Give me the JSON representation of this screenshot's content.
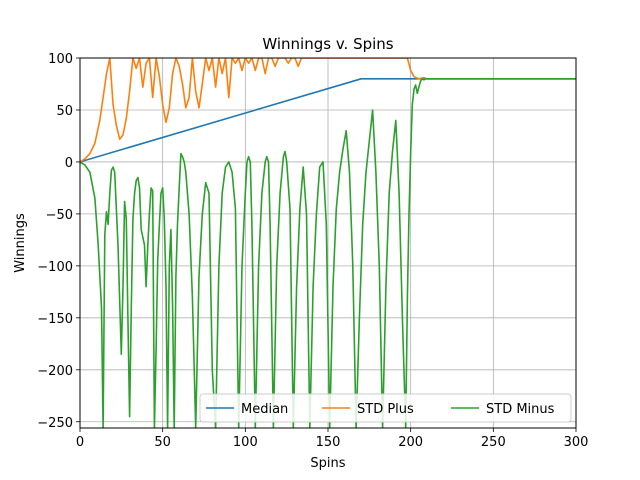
{
  "chart_data": {
    "type": "line",
    "title": "Winnings v. Spins",
    "xlabel": "Spins",
    "ylabel": "Winnings",
    "xlim": [
      0,
      300
    ],
    "ylim": [
      -256,
      100
    ],
    "xticks": [
      0,
      50,
      100,
      150,
      200,
      250,
      300
    ],
    "yticks": [
      -250,
      -200,
      -150,
      -100,
      -50,
      0,
      50,
      100
    ],
    "ytick_labels": [
      "−250",
      "−200",
      "−150",
      "−100",
      "−50",
      "0",
      "50",
      "100"
    ],
    "grid": true,
    "legend": {
      "placement": "lower-right",
      "columns": 3
    },
    "series": [
      {
        "name": "Median",
        "color": "#1f77b4",
        "points": [
          [
            0,
            0
          ],
          [
            170,
            80
          ],
          [
            300,
            80
          ]
        ]
      },
      {
        "name": "STD Plus",
        "color": "#ff7f0e",
        "points": [
          [
            0,
            0
          ],
          [
            3,
            3
          ],
          [
            6,
            8
          ],
          [
            9,
            18
          ],
          [
            12,
            40
          ],
          [
            14,
            62
          ],
          [
            16,
            85
          ],
          [
            18,
            100
          ],
          [
            20,
            55
          ],
          [
            22,
            35
          ],
          [
            24,
            22
          ],
          [
            26,
            26
          ],
          [
            28,
            42
          ],
          [
            30,
            68
          ],
          [
            32,
            100
          ],
          [
            34,
            90
          ],
          [
            36,
            100
          ],
          [
            38,
            72
          ],
          [
            40,
            95
          ],
          [
            42,
            100
          ],
          [
            44,
            62
          ],
          [
            46,
            100
          ],
          [
            48,
            82
          ],
          [
            50,
            55
          ],
          [
            52,
            38
          ],
          [
            54,
            52
          ],
          [
            56,
            85
          ],
          [
            58,
            100
          ],
          [
            60,
            92
          ],
          [
            62,
            75
          ],
          [
            64,
            52
          ],
          [
            66,
            62
          ],
          [
            68,
            100
          ],
          [
            70,
            68
          ],
          [
            72,
            52
          ],
          [
            74,
            75
          ],
          [
            76,
            100
          ],
          [
            78,
            88
          ],
          [
            80,
            100
          ],
          [
            82,
            72
          ],
          [
            84,
            100
          ],
          [
            86,
            85
          ],
          [
            88,
            100
          ],
          [
            90,
            62
          ],
          [
            92,
            100
          ],
          [
            94,
            95
          ],
          [
            96,
            100
          ],
          [
            98,
            88
          ],
          [
            100,
            100
          ],
          [
            102,
            95
          ],
          [
            104,
            100
          ],
          [
            106,
            88
          ],
          [
            108,
            100
          ],
          [
            110,
            100
          ],
          [
            112,
            85
          ],
          [
            114,
            100
          ],
          [
            116,
            100
          ],
          [
            118,
            92
          ],
          [
            120,
            100
          ],
          [
            122,
            100
          ],
          [
            124,
            100
          ],
          [
            126,
            95
          ],
          [
            128,
            100
          ],
          [
            130,
            100
          ],
          [
            132,
            92
          ],
          [
            134,
            100
          ],
          [
            136,
            100
          ],
          [
            138,
            100
          ],
          [
            140,
            100
          ],
          [
            142,
            100
          ],
          [
            144,
            100
          ],
          [
            146,
            100
          ],
          [
            150,
            100
          ],
          [
            155,
            100
          ],
          [
            160,
            100
          ],
          [
            165,
            100
          ],
          [
            170,
            100
          ],
          [
            175,
            100
          ],
          [
            180,
            100
          ],
          [
            185,
            100
          ],
          [
            190,
            100
          ],
          [
            195,
            100
          ],
          [
            198,
            100
          ],
          [
            200,
            88
          ],
          [
            202,
            82
          ],
          [
            205,
            80
          ],
          [
            208,
            81
          ],
          [
            210,
            80
          ],
          [
            220,
            80
          ],
          [
            300,
            80
          ]
        ]
      },
      {
        "name": "STD Minus",
        "color": "#2ca02c",
        "points": [
          [
            0,
            0
          ],
          [
            3,
            -3
          ],
          [
            6,
            -10
          ],
          [
            9,
            -35
          ],
          [
            11,
            -80
          ],
          [
            13,
            -140
          ],
          [
            14,
            -256
          ],
          [
            15,
            -70
          ],
          [
            16,
            -48
          ],
          [
            17,
            -60
          ],
          [
            18,
            -30
          ],
          [
            19,
            -8
          ],
          [
            20,
            -5
          ],
          [
            21,
            -10
          ],
          [
            23,
            -80
          ],
          [
            25,
            -185
          ],
          [
            26,
            -120
          ],
          [
            27,
            -38
          ],
          [
            28,
            -55
          ],
          [
            29,
            -150
          ],
          [
            30,
            -245
          ],
          [
            31,
            -140
          ],
          [
            32,
            -55
          ],
          [
            33,
            -30
          ],
          [
            34,
            -18
          ],
          [
            35,
            -15
          ],
          [
            36,
            -25
          ],
          [
            37,
            -65
          ],
          [
            39,
            -80
          ],
          [
            40,
            -120
          ],
          [
            41,
            -80
          ],
          [
            42,
            -50
          ],
          [
            43,
            -25
          ],
          [
            44,
            -28
          ],
          [
            45,
            -256
          ],
          [
            46,
            -180
          ],
          [
            47,
            -95
          ],
          [
            48,
            -60
          ],
          [
            49,
            -30
          ],
          [
            50,
            -25
          ],
          [
            51,
            -55
          ],
          [
            52,
            -120
          ],
          [
            53,
            -256
          ],
          [
            54,
            -100
          ],
          [
            55,
            -65
          ],
          [
            56,
            -140
          ],
          [
            57,
            -256
          ],
          [
            58,
            -110
          ],
          [
            59,
            -60
          ],
          [
            60,
            -25
          ],
          [
            61,
            8
          ],
          [
            62,
            5
          ],
          [
            63,
            0
          ],
          [
            64,
            -10
          ],
          [
            66,
            -50
          ],
          [
            68,
            -130
          ],
          [
            70,
            -256
          ],
          [
            72,
            -110
          ],
          [
            74,
            -50
          ],
          [
            76,
            -20
          ],
          [
            78,
            -30
          ],
          [
            80,
            -200
          ],
          [
            82,
            -256
          ],
          [
            84,
            -100
          ],
          [
            86,
            -30
          ],
          [
            88,
            -5
          ],
          [
            90,
            0
          ],
          [
            92,
            -10
          ],
          [
            94,
            -45
          ],
          [
            96,
            -256
          ],
          [
            98,
            -100
          ],
          [
            100,
            -30
          ],
          [
            101,
            0
          ],
          [
            102,
            5
          ],
          [
            103,
            0
          ],
          [
            104,
            -60
          ],
          [
            106,
            -256
          ],
          [
            108,
            -100
          ],
          [
            110,
            -30
          ],
          [
            112,
            0
          ],
          [
            113,
            5
          ],
          [
            114,
            0
          ],
          [
            115,
            -60
          ],
          [
            117,
            -256
          ],
          [
            119,
            -100
          ],
          [
            121,
            -30
          ],
          [
            123,
            5
          ],
          [
            124,
            10
          ],
          [
            125,
            0
          ],
          [
            127,
            -45
          ],
          [
            129,
            -256
          ],
          [
            131,
            -120
          ],
          [
            133,
            -45
          ],
          [
            135,
            -5
          ],
          [
            137,
            -50
          ],
          [
            139,
            -256
          ],
          [
            141,
            -120
          ],
          [
            143,
            -50
          ],
          [
            145,
            -5
          ],
          [
            147,
            0
          ],
          [
            149,
            -60
          ],
          [
            151,
            -256
          ],
          [
            153,
            -120
          ],
          [
            155,
            -45
          ],
          [
            157,
            -10
          ],
          [
            159,
            12
          ],
          [
            161,
            30
          ],
          [
            163,
            -10
          ],
          [
            165,
            -100
          ],
          [
            167,
            -256
          ],
          [
            169,
            -150
          ],
          [
            171,
            -60
          ],
          [
            173,
            -10
          ],
          [
            175,
            20
          ],
          [
            177,
            50
          ],
          [
            179,
            -10
          ],
          [
            181,
            -100
          ],
          [
            183,
            -256
          ],
          [
            185,
            -120
          ],
          [
            187,
            -30
          ],
          [
            189,
            10
          ],
          [
            191,
            40
          ],
          [
            193,
            -30
          ],
          [
            195,
            -150
          ],
          [
            197,
            -256
          ],
          [
            198,
            -130
          ],
          [
            199,
            -50
          ],
          [
            200,
            10
          ],
          [
            201,
            55
          ],
          [
            202,
            70
          ],
          [
            203,
            74
          ],
          [
            204,
            66
          ],
          [
            205,
            72
          ],
          [
            206,
            78
          ],
          [
            207,
            80
          ],
          [
            208,
            79
          ],
          [
            209,
            80
          ],
          [
            210,
            80
          ],
          [
            220,
            80
          ],
          [
            300,
            80
          ]
        ]
      }
    ]
  }
}
